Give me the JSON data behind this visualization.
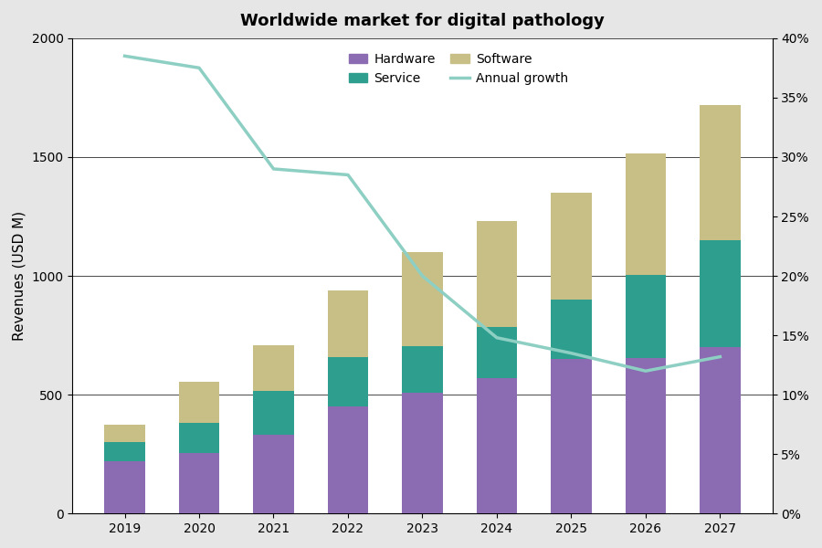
{
  "title": "Worldwide market for digital pathology",
  "years": [
    2019,
    2020,
    2021,
    2022,
    2023,
    2024,
    2025,
    2026,
    2027
  ],
  "hardware": [
    220,
    255,
    330,
    450,
    510,
    570,
    650,
    655,
    700
  ],
  "service": [
    80,
    125,
    185,
    210,
    195,
    215,
    250,
    350,
    450
  ],
  "software": [
    75,
    175,
    195,
    280,
    395,
    445,
    450,
    510,
    570
  ],
  "annual_growth": [
    0.385,
    0.375,
    0.29,
    0.285,
    0.2,
    0.148,
    0.135,
    0.12,
    0.132
  ],
  "hardware_color": "#8B6BB1",
  "service_color": "#2E9E8E",
  "software_color": "#C8BF87",
  "growth_color": "#8ECFC4",
  "ylabel_left": "Revenues (USD M)",
  "ylim_left": [
    0,
    2000
  ],
  "ylim_right": [
    0,
    0.4
  ],
  "yticks_left": [
    0,
    500,
    1000,
    1500,
    2000
  ],
  "yticks_right": [
    0.0,
    0.05,
    0.1,
    0.15,
    0.2,
    0.25,
    0.3,
    0.35,
    0.4
  ],
  "background_color": "#E6E6E6",
  "plot_background": "#FFFFFF",
  "title_fontsize": 13,
  "axis_fontsize": 11,
  "tick_fontsize": 10,
  "bar_width": 0.55
}
